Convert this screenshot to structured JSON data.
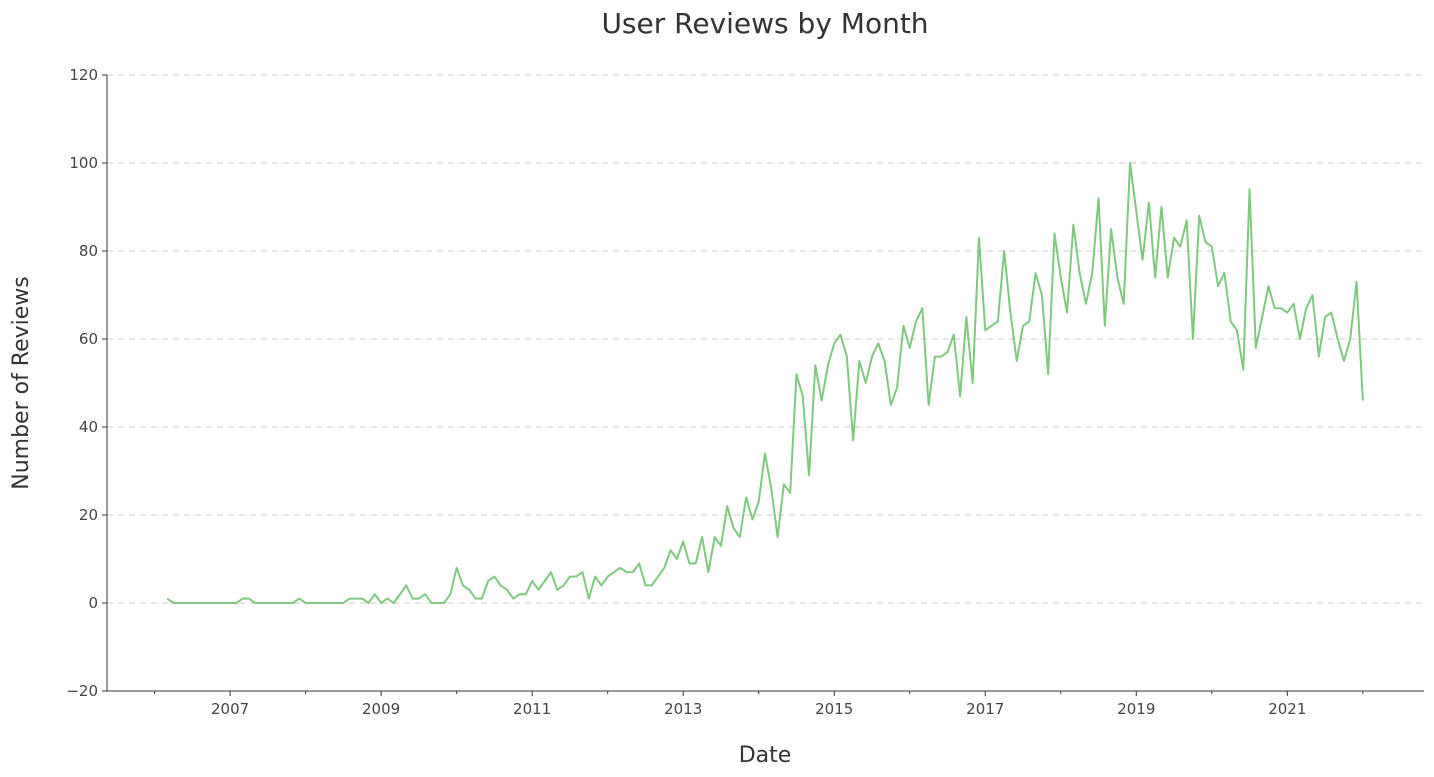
{
  "chart_data": {
    "type": "line",
    "title": "User Reviews by Month",
    "xlabel": "Date",
    "ylabel": "Number of Reviews",
    "x": [
      2006.167,
      2006.25,
      2006.333,
      2006.417,
      2006.5,
      2006.583,
      2006.667,
      2006.75,
      2006.833,
      2006.917,
      2007.0,
      2007.083,
      2007.167,
      2007.25,
      2007.333,
      2007.417,
      2007.5,
      2007.583,
      2007.667,
      2007.75,
      2007.833,
      2007.917,
      2008.0,
      2008.083,
      2008.167,
      2008.25,
      2008.333,
      2008.417,
      2008.5,
      2008.583,
      2008.667,
      2008.75,
      2008.833,
      2008.917,
      2009.0,
      2009.083,
      2009.167,
      2009.25,
      2009.333,
      2009.417,
      2009.5,
      2009.583,
      2009.667,
      2009.75,
      2009.833,
      2009.917,
      2010.0,
      2010.083,
      2010.167,
      2010.25,
      2010.333,
      2010.417,
      2010.5,
      2010.583,
      2010.667,
      2010.75,
      2010.833,
      2010.917,
      2011.0,
      2011.083,
      2011.167,
      2011.25,
      2011.333,
      2011.417,
      2011.5,
      2011.583,
      2011.667,
      2011.75,
      2011.833,
      2011.917,
      2012.0,
      2012.083,
      2012.167,
      2012.25,
      2012.333,
      2012.417,
      2012.5,
      2012.583,
      2012.667,
      2012.75,
      2012.833,
      2012.917,
      2013.0,
      2013.083,
      2013.167,
      2013.25,
      2013.333,
      2013.417,
      2013.5,
      2013.583,
      2013.667,
      2013.75,
      2013.833,
      2013.917,
      2014.0,
      2014.083,
      2014.167,
      2014.25,
      2014.333,
      2014.417,
      2014.5,
      2014.583,
      2014.667,
      2014.75,
      2014.833,
      2014.917,
      2015.0,
      2015.083,
      2015.167,
      2015.25,
      2015.333,
      2015.417,
      2015.5,
      2015.583,
      2015.667,
      2015.75,
      2015.833,
      2015.917,
      2016.0,
      2016.083,
      2016.167,
      2016.25,
      2016.333,
      2016.417,
      2016.5,
      2016.583,
      2016.667,
      2016.75,
      2016.833,
      2016.917,
      2017.0,
      2017.083,
      2017.167,
      2017.25,
      2017.333,
      2017.417,
      2017.5,
      2017.583,
      2017.667,
      2017.75,
      2017.833,
      2017.917,
      2018.0,
      2018.083,
      2018.167,
      2018.25,
      2018.333,
      2018.417,
      2018.5,
      2018.583,
      2018.667,
      2018.75,
      2018.833,
      2018.917,
      2019.0,
      2019.083,
      2019.167,
      2019.25,
      2019.333,
      2019.417,
      2019.5,
      2019.583,
      2019.667,
      2019.75,
      2019.833,
      2019.917,
      2020.0,
      2020.083,
      2020.167,
      2020.25,
      2020.333,
      2020.417,
      2020.5,
      2020.583,
      2020.667,
      2020.75,
      2020.833,
      2020.917,
      2021.0,
      2021.083,
      2021.167,
      2021.25,
      2021.333,
      2021.417,
      2021.5,
      2021.583,
      2021.667,
      2021.75,
      2021.833,
      2021.917,
      2022.0
    ],
    "series": [
      {
        "color": "#7fc97f",
        "values": [
          1,
          0,
          0,
          0,
          0,
          0,
          0,
          0,
          0,
          0,
          0,
          0,
          1,
          1,
          0,
          0,
          0,
          0,
          0,
          0,
          0,
          1,
          0,
          0,
          0,
          0,
          0,
          0,
          0,
          1,
          1,
          1,
          0,
          2,
          0,
          1,
          0,
          2,
          4,
          1,
          1,
          2,
          0,
          0,
          0,
          2,
          8,
          4,
          3,
          1,
          1,
          5,
          6,
          4,
          3,
          1,
          2,
          2,
          5,
          3,
          5,
          7,
          3,
          4,
          6,
          6,
          7,
          1,
          6,
          4,
          6,
          7,
          8,
          7,
          7,
          9,
          4,
          4,
          6,
          8,
          12,
          10,
          14,
          9,
          9,
          15,
          7,
          15,
          13,
          22,
          17,
          15,
          24,
          19,
          23,
          34,
          26,
          15,
          27,
          25,
          52,
          47,
          29,
          54,
          46,
          54,
          59,
          61,
          56,
          37,
          55,
          50,
          56,
          59,
          55,
          45,
          49,
          63,
          58,
          64,
          67,
          45,
          56,
          56,
          57,
          61,
          47,
          65,
          50,
          83,
          62,
          63,
          64,
          80,
          66,
          55,
          63,
          64,
          75,
          70,
          52,
          84,
          74,
          66,
          86,
          75,
          68,
          75,
          92,
          63,
          85,
          74,
          68,
          100,
          89,
          78,
          91,
          74,
          90,
          74,
          83,
          81,
          87,
          60,
          88,
          82,
          81,
          72,
          75,
          64,
          62,
          53,
          94,
          58,
          65,
          72,
          67,
          67,
          66,
          68,
          60,
          67,
          70,
          56,
          65,
          66,
          60,
          55,
          60,
          73,
          46
        ]
      }
    ],
    "xlim": [
      2005.37,
      2022.81
    ],
    "xticks": [
      2007,
      2009,
      2011,
      2013,
      2015,
      2017,
      2019,
      2021
    ],
    "xminorticks": [
      2006,
      2008,
      2010,
      2012,
      2014,
      2016,
      2018,
      2020,
      2022
    ],
    "ylim": [
      -20,
      120
    ],
    "yticks": [
      {
        "value": -20,
        "label": "−20"
      },
      0,
      20,
      40,
      60,
      80,
      100,
      120
    ],
    "grid": true
  }
}
